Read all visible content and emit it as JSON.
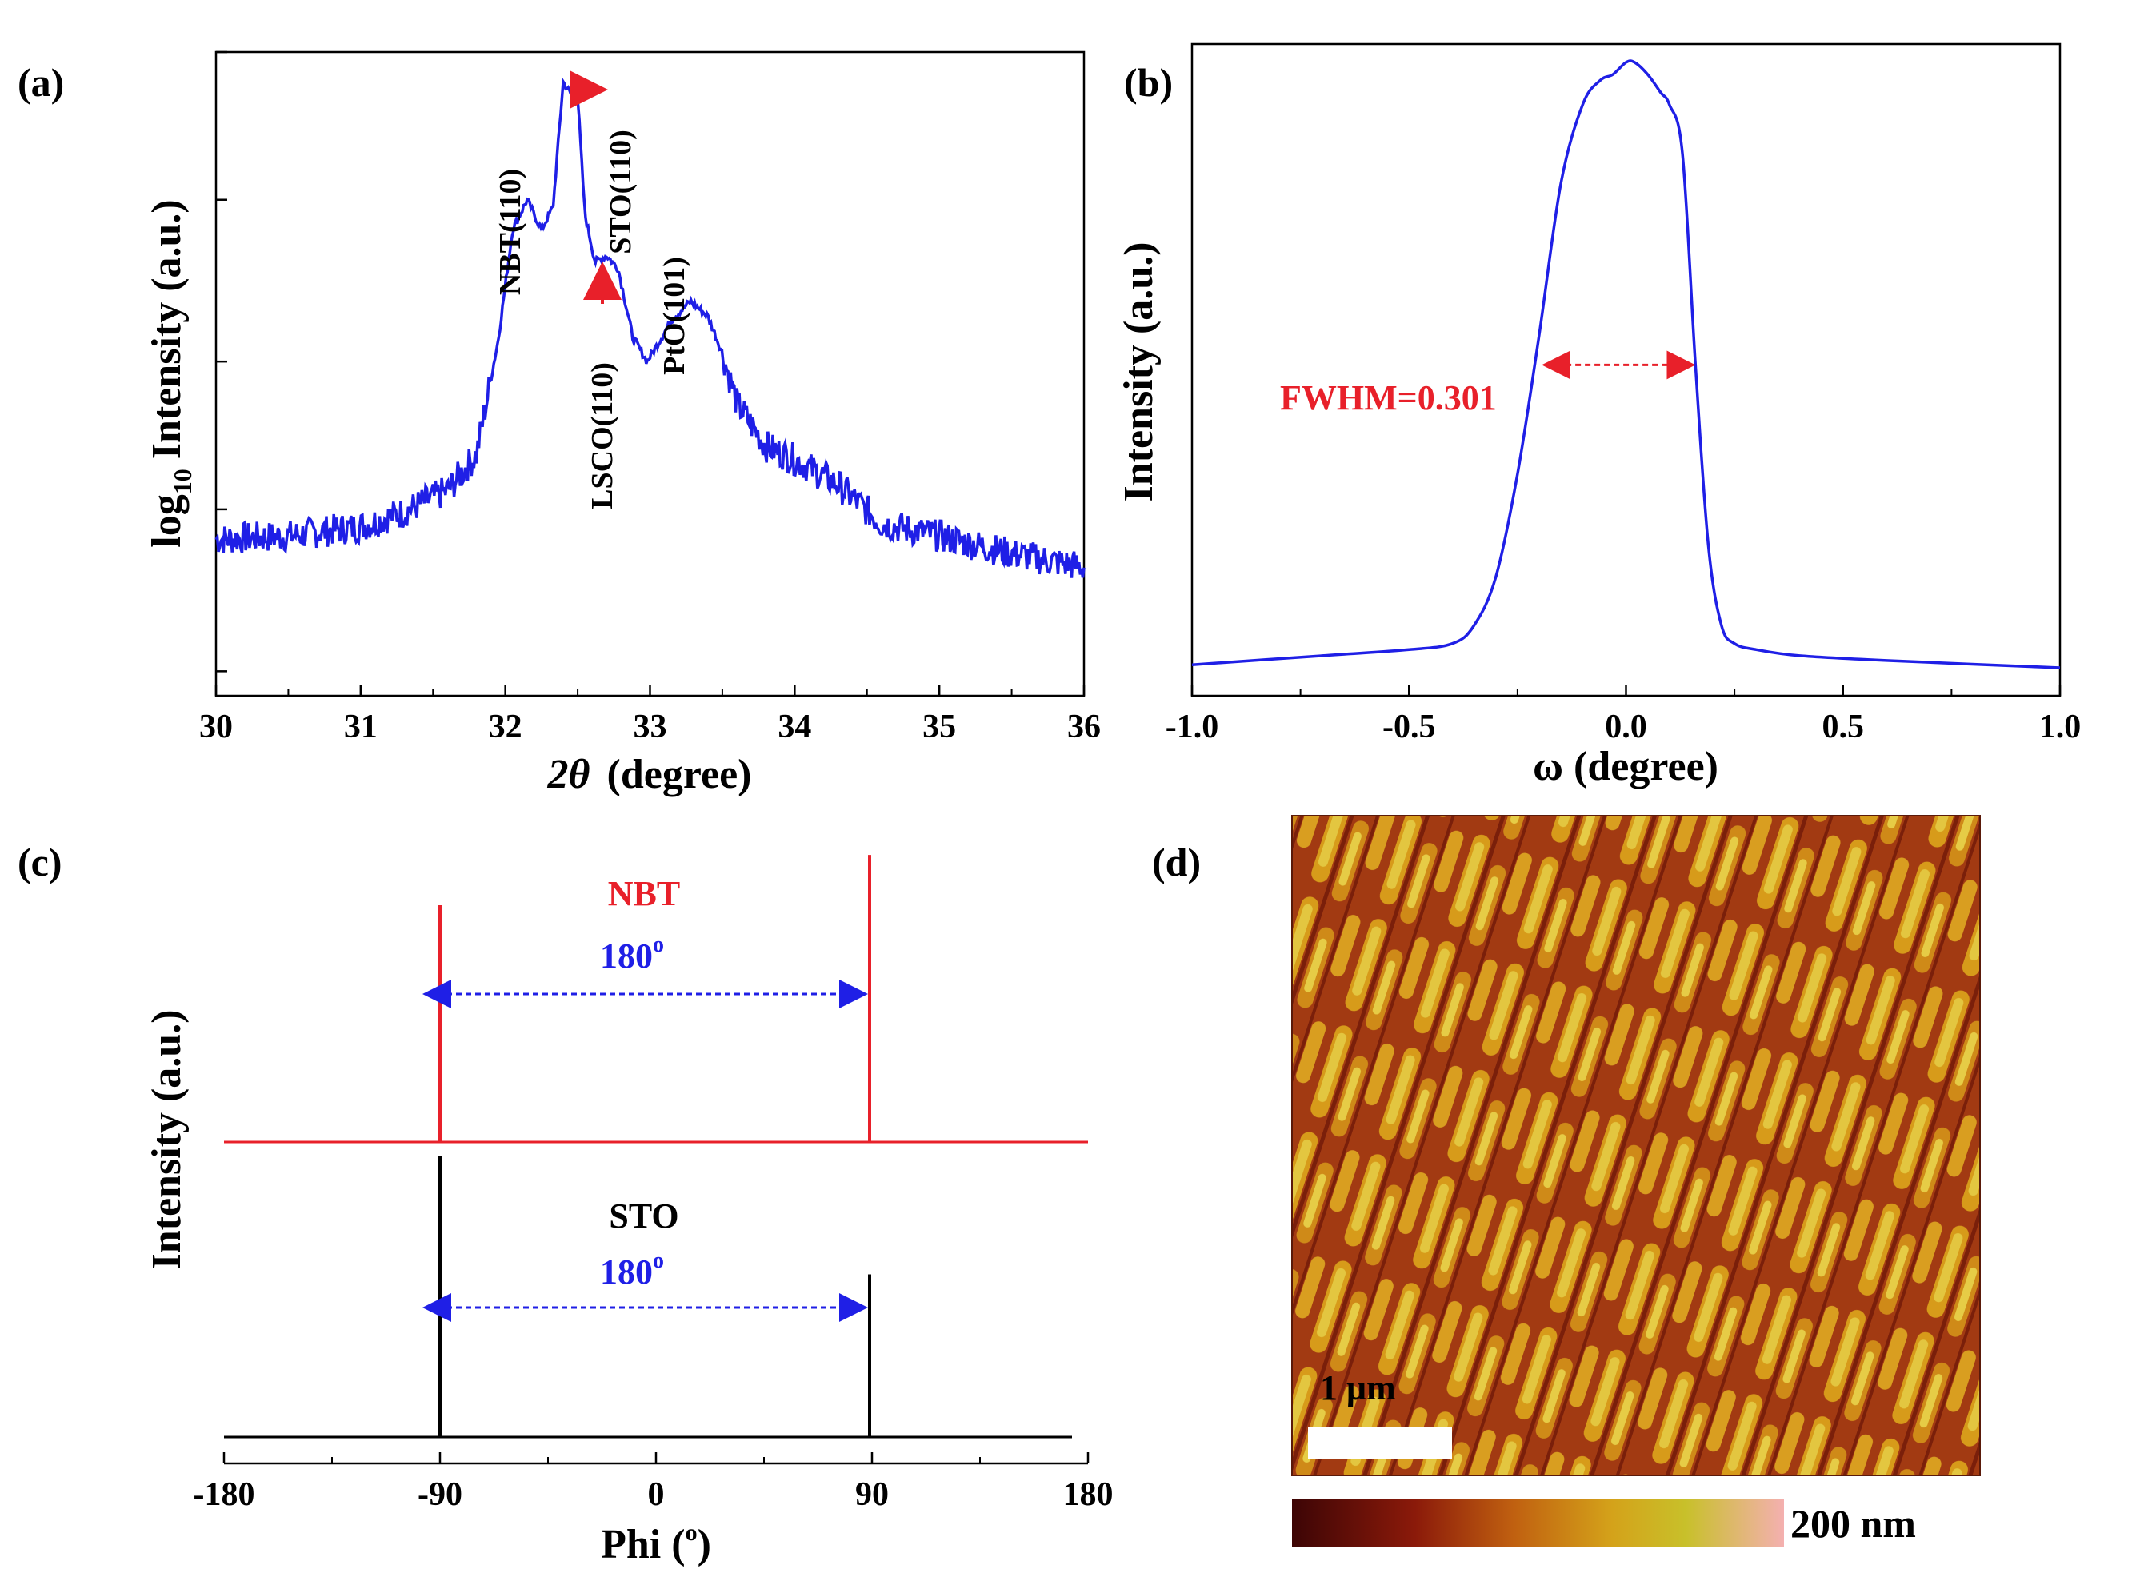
{
  "panels": {
    "a": {
      "label": "(a)"
    },
    "b": {
      "label": "(b)"
    },
    "c": {
      "label": "(c)"
    },
    "d": {
      "label": "(d)"
    }
  },
  "chart_data": [
    {
      "panel": "a",
      "type": "line",
      "xlabel_symbol": "2θ",
      "xlabel_text": "(degree)",
      "ylabel_prefix": "log",
      "ylabel_sub": "10",
      "ylabel_rest": "Intensity (a.u.)",
      "xlim": [
        30,
        36
      ],
      "x_ticks": [
        "30",
        "31",
        "32",
        "33",
        "34",
        "35",
        "36"
      ],
      "y_scale": "log",
      "y_tick_labels_shown": false,
      "ylim": [
        0.25,
        30
      ],
      "color": "#1f1fe6",
      "series": [
        {
          "x": [
            30.0,
            30.5,
            31.0,
            31.3,
            31.6,
            31.8,
            31.95,
            32.05,
            32.15,
            32.25,
            32.33,
            32.4,
            32.45,
            32.5,
            32.55,
            32.62,
            32.7,
            32.78,
            32.88,
            32.98,
            33.05,
            33.15,
            33.28,
            33.4,
            33.5,
            33.6,
            33.8,
            34.0,
            34.3,
            34.6,
            35.0,
            35.5,
            36.0
          ],
          "y": [
            0.8,
            0.82,
            0.88,
            0.98,
            1.15,
            1.5,
            3.5,
            8.0,
            10.0,
            8.0,
            9.5,
            24.0,
            22.0,
            21.5,
            9.0,
            6.3,
            6.6,
            6.0,
            3.6,
            3.0,
            3.4,
            4.1,
            4.7,
            4.2,
            3.2,
            2.2,
            1.6,
            1.45,
            1.2,
            0.9,
            0.82,
            0.72,
            0.65
          ]
        }
      ],
      "annotations": [
        {
          "text": "NBT(110)",
          "x": 32.15
        },
        {
          "text": "STO(110)",
          "x": 32.42
        },
        {
          "text": "LSCO(110)",
          "x": 32.68
        },
        {
          "text": "PtO(101)",
          "x": 33.28
        }
      ]
    },
    {
      "panel": "b",
      "type": "line",
      "xlabel": "ω (degree)",
      "ylabel": "Intensity (a.u.)",
      "xlim": [
        -1.0,
        1.0
      ],
      "x_ticks": [
        "-1.0",
        "-0.5",
        "0.0",
        "0.5",
        "1.0"
      ],
      "y_tick_labels_shown": false,
      "ylim": [
        0,
        1.05
      ],
      "color": "#1f1fe6",
      "series": [
        {
          "x": [
            -1.0,
            -0.7,
            -0.5,
            -0.4,
            -0.35,
            -0.3,
            -0.25,
            -0.2,
            -0.15,
            -0.1,
            -0.06,
            -0.03,
            0.0,
            0.02,
            0.05,
            0.08,
            0.1,
            0.13,
            0.16,
            0.19,
            0.22,
            0.25,
            0.3,
            0.4,
            0.6,
            1.0
          ],
          "y": [
            0.005,
            0.02,
            0.03,
            0.04,
            0.07,
            0.15,
            0.32,
            0.55,
            0.8,
            0.93,
            0.97,
            0.98,
            1.0,
            1.0,
            0.98,
            0.95,
            0.93,
            0.85,
            0.5,
            0.2,
            0.07,
            0.04,
            0.03,
            0.02,
            0.012,
            0.0
          ]
        }
      ],
      "annotation_text": "FWHM=0.301",
      "fwhm_x": [
        -0.15,
        0.16
      ],
      "fwhm_y": 0.5
    },
    {
      "panel": "c",
      "type": "line",
      "xlabel_text": "Phi (",
      "xlabel_sup": "o",
      "xlabel_close": ")",
      "ylabel": "Intensity (a.u.)",
      "xlim": [
        -180,
        180
      ],
      "x_ticks": [
        "-180",
        "-90",
        "0",
        "90",
        "180"
      ],
      "y_tick_labels_shown": false,
      "series": [
        {
          "name": "NBT",
          "color": "#e8202a",
          "baseline": 0.5,
          "peaks": [
            {
              "x": -90,
              "height": 0.8
            },
            {
              "x": 89,
              "height": 0.97
            }
          ]
        },
        {
          "name": "STO",
          "color": "#000000",
          "baseline": 0.0,
          "peaks": [
            {
              "x": -90,
              "height": 0.95
            },
            {
              "x": 89,
              "height": 0.55
            }
          ]
        }
      ],
      "annotations": [
        {
          "label": "180",
          "sup": "o",
          "color": "#1f1fe6",
          "from": -90,
          "to": 89
        }
      ]
    }
  ],
  "afm": {
    "scale_bar_label": "1 μm",
    "colorbar_label": "200 nm",
    "colorbar_colors": [
      "#3d0505",
      "#8b1a0a",
      "#c06010",
      "#d4a21a",
      "#c8c02a",
      "#f4b0b0"
    ]
  }
}
